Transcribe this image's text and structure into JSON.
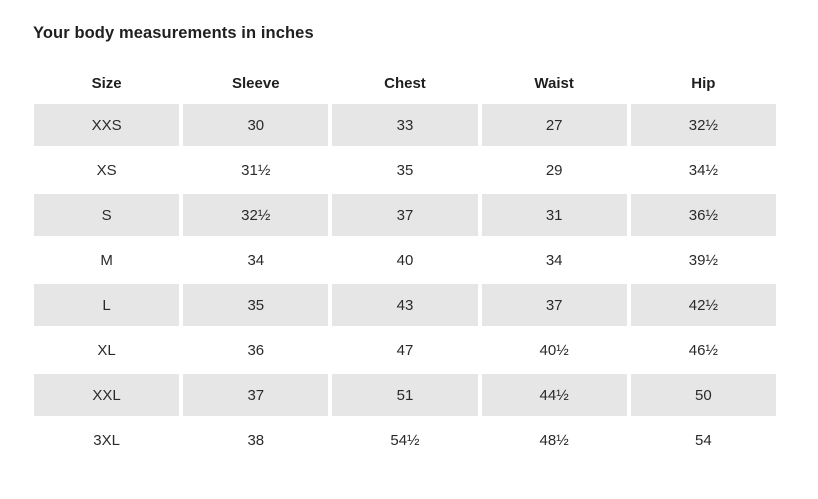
{
  "title": "Your body measurements in inches",
  "unit": "inches",
  "colors": {
    "background": "#ffffff",
    "row_shaded": "#e6e6e6",
    "text": "#222222"
  },
  "table": {
    "columns": [
      "Size",
      "Sleeve",
      "Chest",
      "Waist",
      "Hip"
    ],
    "rows": [
      {
        "shaded": true,
        "cells": [
          "XXS",
          "30",
          "33",
          "27",
          "32½"
        ]
      },
      {
        "shaded": false,
        "cells": [
          "XS",
          "31½",
          "35",
          "29",
          "34½"
        ]
      },
      {
        "shaded": true,
        "cells": [
          "S",
          "32½",
          "37",
          "31",
          "36½"
        ]
      },
      {
        "shaded": false,
        "cells": [
          "M",
          "34",
          "40",
          "34",
          "39½"
        ]
      },
      {
        "shaded": true,
        "cells": [
          "L",
          "35",
          "43",
          "37",
          "42½"
        ]
      },
      {
        "shaded": false,
        "cells": [
          "XL",
          "36",
          "47",
          "40½",
          "46½"
        ]
      },
      {
        "shaded": true,
        "cells": [
          "XXL",
          "37",
          "51",
          "44½",
          "50"
        ]
      },
      {
        "shaded": false,
        "cells": [
          "3XL",
          "38",
          "54½",
          "48½",
          "54"
        ]
      }
    ]
  },
  "chart_data": {
    "type": "table",
    "title": "Your body measurements in inches",
    "columns": [
      "Size",
      "Sleeve",
      "Chest",
      "Waist",
      "Hip"
    ],
    "rows": [
      [
        "XXS",
        "30",
        "33",
        "27",
        "32½"
      ],
      [
        "XS",
        "31½",
        "35",
        "29",
        "34½"
      ],
      [
        "S",
        "32½",
        "37",
        "31",
        "36½"
      ],
      [
        "M",
        "34",
        "40",
        "34",
        "39½"
      ],
      [
        "L",
        "35",
        "43",
        "37",
        "42½"
      ],
      [
        "XL",
        "36",
        "47",
        "40½",
        "46½"
      ],
      [
        "XXL",
        "37",
        "51",
        "44½",
        "50"
      ],
      [
        "3XL",
        "38",
        "54½",
        "48½",
        "54"
      ]
    ]
  }
}
